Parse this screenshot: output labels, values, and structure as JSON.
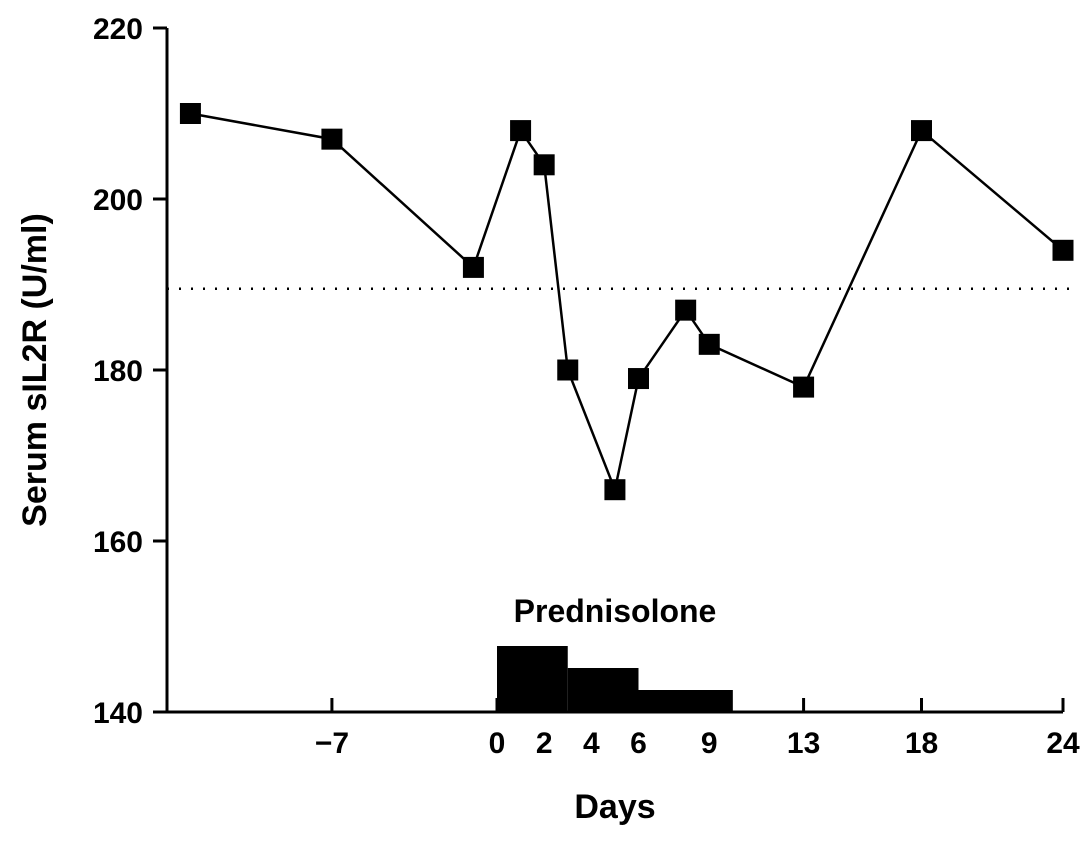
{
  "chart_data": {
    "type": "line",
    "title": "",
    "xlabel": "Days",
    "ylabel": "Serum sIL2R (U/ml)",
    "ylim": [
      140,
      220
    ],
    "yticks": [
      140,
      160,
      180,
      200,
      220
    ],
    "xticks": [
      {
        "value": -7,
        "label": "−7"
      },
      {
        "value": 0,
        "label": "0"
      },
      {
        "value": 2,
        "label": "2"
      },
      {
        "value": 4,
        "label": "4"
      },
      {
        "value": 6,
        "label": "6"
      },
      {
        "value": 9,
        "label": "9"
      },
      {
        "value": 13,
        "label": "13"
      },
      {
        "value": 18,
        "label": "18"
      },
      {
        "value": 24,
        "label": "24"
      }
    ],
    "grid": false,
    "reference_line": {
      "y": 189.5,
      "style": "dotted"
    },
    "series": [
      {
        "marker": "square",
        "points": [
          {
            "x": -13,
            "y": 210
          },
          {
            "x": -7,
            "y": 207
          },
          {
            "x": -1,
            "y": 192
          },
          {
            "x": 1,
            "y": 208
          },
          {
            "x": 2,
            "y": 204
          },
          {
            "x": 3,
            "y": 180
          },
          {
            "x": 5,
            "y": 166
          },
          {
            "x": 6,
            "y": 179
          },
          {
            "x": 8,
            "y": 187
          },
          {
            "x": 9,
            "y": 183
          },
          {
            "x": 13,
            "y": 178
          },
          {
            "x": 18,
            "y": 208
          },
          {
            "x": 24,
            "y": 194
          }
        ]
      }
    ],
    "annotation": {
      "label": "Prednisolone",
      "dose_blocks": [
        {
          "start": 0,
          "end": 3,
          "height": 3
        },
        {
          "start": 3,
          "end": 6,
          "height": 2
        },
        {
          "start": 6,
          "end": 10,
          "height": 1
        }
      ]
    }
  }
}
